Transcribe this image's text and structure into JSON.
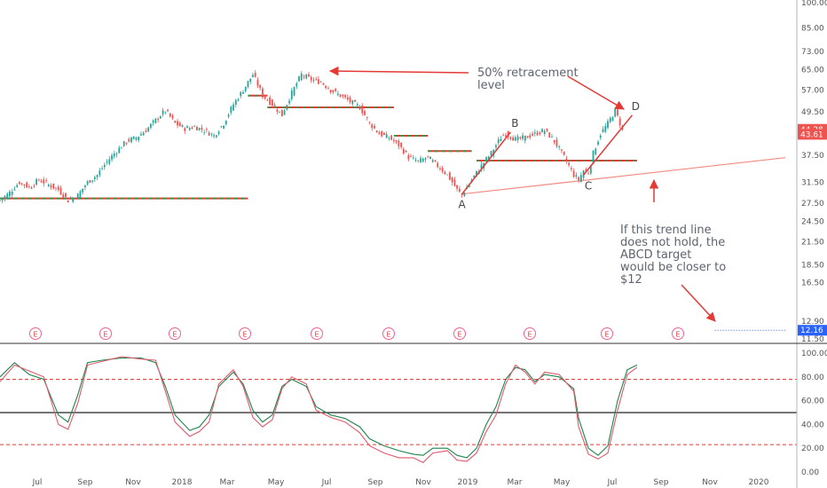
{
  "chart_data": [
    {
      "type": "candlestick",
      "yscale": "log",
      "ylim": [
        11.5,
        100
      ],
      "y_ticks": [
        "100.00",
        "85.00",
        "73.00",
        "65.00",
        "57.00",
        "49.50",
        "37.50",
        "31.50",
        "27.50",
        "24.50",
        "21.50",
        "18.50",
        "16.50",
        "12.90",
        "11.50"
      ],
      "price_labels": [
        {
          "text": "44.28",
          "value": 44.28,
          "color": "#ef5350"
        },
        {
          "text": "43.61",
          "value": 43.61,
          "color": "#ef5350"
        },
        {
          "text": "12.16",
          "value": 12.16,
          "color": "#2962ff"
        }
      ],
      "x_labels": [
        "Jul",
        "Sep",
        "Nov",
        "2018",
        "Mar",
        "May",
        "Jul",
        "Sep",
        "Nov",
        "2019",
        "Mar",
        "May",
        "Jul",
        "Sep",
        "Nov",
        "2020"
      ],
      "price_series": [
        [
          0,
          28
        ],
        [
          4,
          29.5
        ],
        [
          8,
          31.5
        ],
        [
          12,
          30.5
        ],
        [
          16,
          32
        ],
        [
          20,
          31
        ],
        [
          24,
          30
        ],
        [
          28,
          28
        ],
        [
          32,
          29
        ],
        [
          36,
          31.5
        ],
        [
          40,
          33
        ],
        [
          44,
          36
        ],
        [
          48,
          38.5
        ],
        [
          52,
          41
        ],
        [
          56,
          42
        ],
        [
          60,
          44
        ],
        [
          64,
          47
        ],
        [
          68,
          50
        ],
        [
          72,
          46
        ],
        [
          76,
          44.5
        ],
        [
          80,
          45
        ],
        [
          84,
          44
        ],
        [
          88,
          42.5
        ],
        [
          92,
          46
        ],
        [
          96,
          52
        ],
        [
          100,
          57
        ],
        [
          104,
          63
        ],
        [
          108,
          55
        ],
        [
          112,
          52
        ],
        [
          116,
          48.5
        ],
        [
          120,
          56
        ],
        [
          124,
          63
        ],
        [
          128,
          61
        ],
        [
          132,
          60
        ],
        [
          136,
          57
        ],
        [
          140,
          55
        ],
        [
          144,
          53
        ],
        [
          148,
          51
        ],
        [
          152,
          46
        ],
        [
          156,
          43
        ],
        [
          160,
          42
        ],
        [
          164,
          40
        ],
        [
          168,
          37
        ],
        [
          172,
          36
        ],
        [
          176,
          37
        ],
        [
          180,
          35
        ],
        [
          184,
          33
        ],
        [
          188,
          30
        ],
        [
          190,
          29
        ],
        [
          194,
          32
        ],
        [
          198,
          35
        ],
        [
          202,
          38
        ],
        [
          206,
          42
        ],
        [
          208,
          43
        ],
        [
          212,
          41.5
        ],
        [
          216,
          42
        ],
        [
          220,
          43
        ],
        [
          224,
          44
        ],
        [
          228,
          41
        ],
        [
          232,
          37
        ],
        [
          236,
          33
        ],
        [
          238,
          32
        ],
        [
          240,
          34
        ],
        [
          242,
          33.5
        ],
        [
          244,
          38
        ],
        [
          247,
          43
        ],
        [
          250,
          46
        ],
        [
          253,
          50
        ],
        [
          255,
          46
        ],
        [
          256,
          43.9
        ]
      ],
      "levels": [
        {
          "x0": 0,
          "x1": 102,
          "value": 28.4,
          "color": "red-green dashed"
        },
        {
          "x0": 102,
          "x1": 110,
          "value": 55,
          "color": "red-green dashed"
        },
        {
          "x0": 110,
          "x1": 162,
          "value": 51,
          "color": "red-green dashed"
        },
        {
          "x0": 162,
          "x1": 176,
          "value": 42.5,
          "color": "red-green dashed"
        },
        {
          "x0": 176,
          "x1": 194,
          "value": 38.5,
          "color": "red-green dashed"
        },
        {
          "x0": 196,
          "x1": 262,
          "value": 36.2,
          "color": "red-green dashed"
        },
        {
          "x0": 294,
          "x1": 323,
          "value": 12.16,
          "color": "blue dotted"
        }
      ],
      "trend_line": {
        "from": [
          190,
          29.2
        ],
        "to": [
          323,
          36.9
        ]
      },
      "abcd_legs": [
        {
          "from": [
            190,
            29.2
          ],
          "to": [
            210,
            43.5
          ]
        },
        {
          "from": [
            240,
            33
          ],
          "to": [
            260,
            48.5
          ]
        }
      ],
      "points": [
        {
          "label": "A",
          "x": 190,
          "value": 29.2
        },
        {
          "label": "B",
          "x": 210,
          "value": 43.5
        },
        {
          "label": "C",
          "x": 242,
          "value": 33
        },
        {
          "label": "D",
          "x": 260,
          "value": 48.5
        }
      ],
      "earnings_markers": [
        "E",
        "E",
        "E",
        "E",
        "E",
        "E",
        "E",
        "E",
        "E",
        "E"
      ],
      "annotations": [
        {
          "id": "retracement",
          "lines": [
            "50% retracement",
            "level"
          ]
        },
        {
          "id": "trendline_note",
          "lines": [
            "If this trend line",
            "does not hold, the",
            "ABCD target",
            "would be closer to",
            "$12"
          ]
        }
      ]
    },
    {
      "type": "line",
      "indicator": "stochastic",
      "ylim": [
        0,
        100
      ],
      "y_ticks": [
        "100.00",
        "80.00",
        "60.00",
        "40.00",
        "20.00",
        "0.00"
      ],
      "overbought": 78,
      "oversold": 23,
      "midline": 50,
      "series": [
        {
          "color": "#1e8449",
          "values": [
            [
              0,
              80
            ],
            [
              6,
              92
            ],
            [
              12,
              82
            ],
            [
              18,
              78
            ],
            [
              24,
              48
            ],
            [
              28,
              42
            ],
            [
              32,
              65
            ],
            [
              36,
              92
            ],
            [
              42,
              94
            ],
            [
              50,
              96
            ],
            [
              58,
              96
            ],
            [
              64,
              92
            ],
            [
              68,
              72
            ],
            [
              72,
              48
            ],
            [
              78,
              35
            ],
            [
              82,
              38
            ],
            [
              86,
              48
            ],
            [
              90,
              72
            ],
            [
              96,
              84
            ],
            [
              100,
              74
            ],
            [
              104,
              52
            ],
            [
              108,
              42
            ],
            [
              112,
              48
            ],
            [
              116,
              72
            ],
            [
              120,
              78
            ],
            [
              126,
              72
            ],
            [
              130,
              55
            ],
            [
              136,
              48
            ],
            [
              142,
              45
            ],
            [
              148,
              38
            ],
            [
              152,
              28
            ],
            [
              158,
              22
            ],
            [
              164,
              18
            ],
            [
              170,
              15
            ],
            [
              174,
              14
            ],
            [
              178,
              20
            ],
            [
              184,
              20
            ],
            [
              188,
              14
            ],
            [
              192,
              12
            ],
            [
              196,
              20
            ],
            [
              200,
              40
            ],
            [
              204,
              55
            ],
            [
              208,
              78
            ],
            [
              212,
              88
            ],
            [
              216,
              86
            ],
            [
              220,
              76
            ],
            [
              224,
              82
            ],
            [
              230,
              80
            ],
            [
              236,
              70
            ],
            [
              238,
              45
            ],
            [
              242,
              20
            ],
            [
              246,
              14
            ],
            [
              250,
              22
            ],
            [
              254,
              60
            ],
            [
              258,
              86
            ],
            [
              262,
              90
            ]
          ]
        },
        {
          "color": "#e05a6d",
          "values": [
            [
              0,
              76
            ],
            [
              6,
              90
            ],
            [
              12,
              85
            ],
            [
              18,
              80
            ],
            [
              24,
              40
            ],
            [
              28,
              36
            ],
            [
              32,
              58
            ],
            [
              36,
              90
            ],
            [
              42,
              93
            ],
            [
              50,
              97
            ],
            [
              58,
              95
            ],
            [
              64,
              94
            ],
            [
              68,
              68
            ],
            [
              72,
              42
            ],
            [
              78,
              30
            ],
            [
              82,
              34
            ],
            [
              86,
              42
            ],
            [
              90,
              74
            ],
            [
              96,
              86
            ],
            [
              100,
              72
            ],
            [
              104,
              46
            ],
            [
              108,
              38
            ],
            [
              112,
              44
            ],
            [
              116,
              70
            ],
            [
              120,
              80
            ],
            [
              126,
              74
            ],
            [
              130,
              52
            ],
            [
              136,
              46
            ],
            [
              142,
              42
            ],
            [
              148,
              33
            ],
            [
              152,
              22
            ],
            [
              158,
              16
            ],
            [
              164,
              12
            ],
            [
              170,
              12
            ],
            [
              174,
              8
            ],
            [
              178,
              16
            ],
            [
              184,
              18
            ],
            [
              188,
              10
            ],
            [
              192,
              9
            ],
            [
              196,
              16
            ],
            [
              200,
              34
            ],
            [
              204,
              48
            ],
            [
              208,
              74
            ],
            [
              212,
              90
            ],
            [
              216,
              84
            ],
            [
              220,
              74
            ],
            [
              224,
              84
            ],
            [
              230,
              82
            ],
            [
              236,
              68
            ],
            [
              238,
              38
            ],
            [
              242,
              15
            ],
            [
              246,
              11
            ],
            [
              250,
              16
            ],
            [
              254,
              52
            ],
            [
              258,
              82
            ],
            [
              262,
              88
            ]
          ]
        }
      ]
    }
  ]
}
